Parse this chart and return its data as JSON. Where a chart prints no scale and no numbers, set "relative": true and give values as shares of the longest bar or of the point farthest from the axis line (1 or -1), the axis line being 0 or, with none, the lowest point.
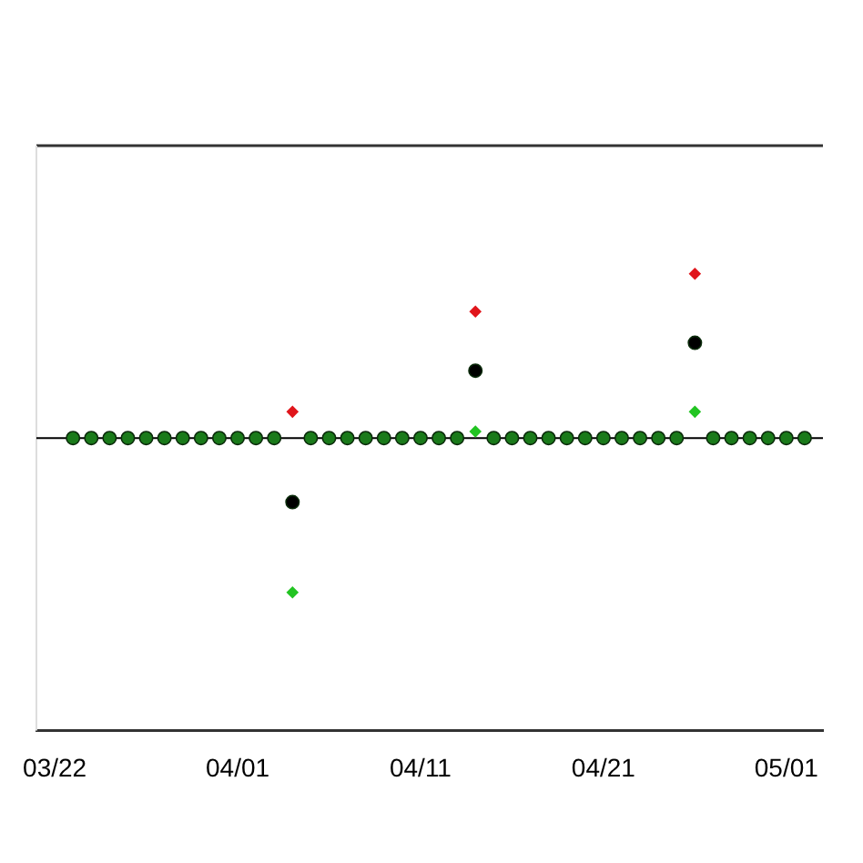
{
  "chart_data": {
    "type": "scatter",
    "relative": true,
    "x": [
      "--03-23",
      "--03-24",
      "--03-25",
      "--03-26",
      "--03-27",
      "--03-28",
      "--03-29",
      "--03-30",
      "--03-31",
      "--04-01",
      "--04-02",
      "--04-03",
      "--04-04",
      "--04-05",
      "--04-06",
      "--04-07",
      "--04-08",
      "--04-09",
      "--04-10",
      "--04-11",
      "--04-12",
      "--04-13",
      "--04-14",
      "--04-15",
      "--04-16",
      "--04-17",
      "--04-18",
      "--04-19",
      "--04-20",
      "--04-21",
      "--04-22",
      "--04-23",
      "--04-24",
      "--04-25",
      "--04-26",
      "--04-27",
      "--04-28",
      "--04-29",
      "--04-30",
      "--05-01",
      "--05-02"
    ],
    "xlim": [
      "--03-21",
      "--05-03"
    ],
    "xticks": [
      {
        "value": "--03-22",
        "label": "03/22"
      },
      {
        "value": "--04-01",
        "label": "04/01"
      },
      {
        "value": "--04-11",
        "label": "04/11"
      },
      {
        "value": "--04-21",
        "label": "04/21"
      },
      {
        "value": "--05-01",
        "label": "05/01"
      }
    ],
    "series": [
      {
        "color": "#1a7a1a",
        "marker": "circle",
        "values": [
          0,
          0,
          0,
          0,
          0,
          0,
          0,
          0,
          0,
          0,
          0,
          0,
          null,
          0,
          0,
          0,
          0,
          0,
          0,
          0,
          0,
          0,
          null,
          0,
          0,
          0,
          0,
          0,
          0,
          0,
          0,
          0,
          0,
          0,
          null,
          0,
          0,
          0,
          0,
          0,
          0
        ]
      },
      {
        "color": "#000000",
        "marker": "circle",
        "values": [
          null,
          null,
          null,
          null,
          null,
          null,
          null,
          null,
          null,
          null,
          null,
          null,
          -0.39,
          null,
          null,
          null,
          null,
          null,
          null,
          null,
          null,
          null,
          0.41,
          null,
          null,
          null,
          null,
          null,
          null,
          null,
          null,
          null,
          null,
          null,
          0.58,
          null,
          null,
          null,
          null,
          null,
          null
        ]
      },
      {
        "color": "#e0151b",
        "marker": "diamond",
        "values": [
          null,
          null,
          null,
          null,
          null,
          null,
          null,
          null,
          null,
          null,
          null,
          null,
          0.16,
          null,
          null,
          null,
          null,
          null,
          null,
          null,
          null,
          null,
          0.77,
          null,
          null,
          null,
          null,
          null,
          null,
          null,
          null,
          null,
          null,
          null,
          1,
          null,
          null,
          null,
          null,
          null,
          null
        ]
      },
      {
        "color": "#22c422",
        "marker": "diamond",
        "values": [
          null,
          null,
          null,
          null,
          null,
          null,
          null,
          null,
          null,
          null,
          null,
          null,
          -0.94,
          null,
          null,
          null,
          null,
          null,
          null,
          null,
          null,
          null,
          0.04,
          null,
          null,
          null,
          null,
          null,
          null,
          null,
          null,
          null,
          null,
          null,
          0.16,
          null,
          null,
          null,
          null,
          null,
          null
        ]
      }
    ],
    "grid": false,
    "legend": false
  }
}
